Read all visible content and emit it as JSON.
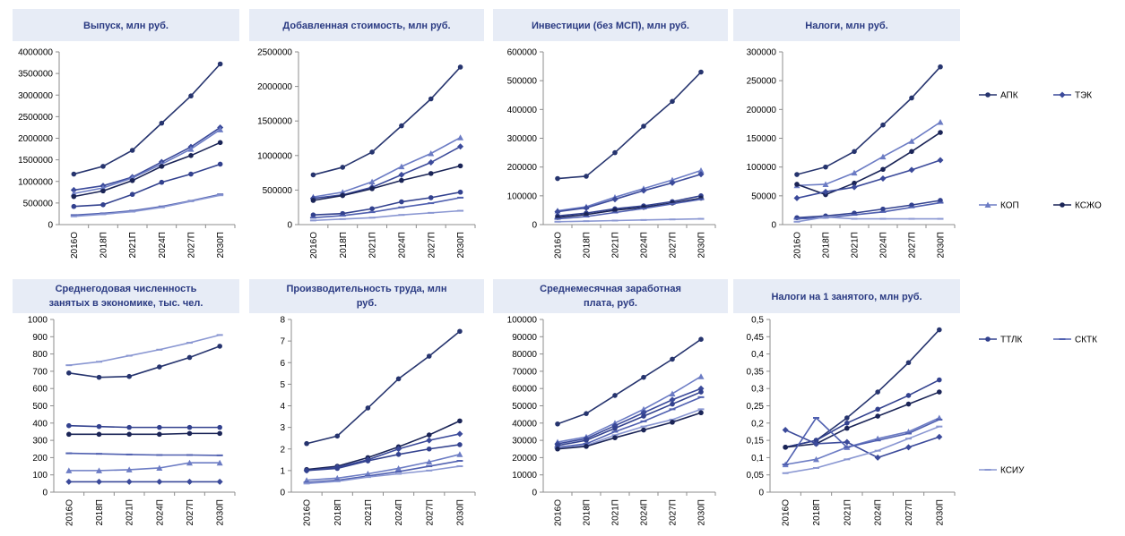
{
  "x_categories": [
    "2016О",
    "2018П",
    "2021П",
    "2024П",
    "2027П",
    "2030П"
  ],
  "series_styles": [
    {
      "key": "apk",
      "name": "АПК",
      "color": "#26346e",
      "marker": "circle"
    },
    {
      "key": "tek",
      "name": "ТЭК",
      "color": "#3b4a9a",
      "marker": "diamond"
    },
    {
      "key": "kop",
      "name": "КОП",
      "color": "#6c7cc4",
      "marker": "triangle"
    },
    {
      "key": "ksjo",
      "name": "КСЖО",
      "color": "#1a2456",
      "marker": "circle"
    },
    {
      "key": "ttlk",
      "name": "ТТЛК",
      "color": "#32418e",
      "marker": "circle"
    },
    {
      "key": "sktk",
      "name": "СКТК",
      "color": "#5060b0",
      "marker": "dash"
    },
    {
      "key": "ksiu",
      "name": "КСИУ",
      "color": "#8a97d2",
      "marker": "dash"
    }
  ],
  "legend": [
    {
      "text": "АПК",
      "series": "apk"
    },
    {
      "text": "ТЭК",
      "series": "tek"
    },
    {
      "text": "КОП",
      "series": "kop"
    },
    {
      "text": "КСЖО",
      "series": "ksjo"
    },
    {
      "text": "ТТЛК",
      "series": "ttlk"
    },
    {
      "text": "СКТК",
      "series": "sktk"
    },
    {
      "text": "КСИУ",
      "series": "ksiu"
    }
  ],
  "chart_data": [
    {
      "type": "line",
      "title_lines": [
        "Выпуск, млн руб."
      ],
      "ylim": [
        0,
        4000000
      ],
      "y_ticks": [
        "0",
        "500000",
        "1000000",
        "1500000",
        "2000000",
        "2500000",
        "3000000",
        "3500000",
        "4000000"
      ],
      "series": [
        {
          "style": "apk",
          "values": [
            1170000,
            1350000,
            1720000,
            2350000,
            2980000,
            3720000
          ]
        },
        {
          "style": "tek",
          "values": [
            800000,
            900000,
            1100000,
            1450000,
            1800000,
            2250000
          ]
        },
        {
          "style": "kop",
          "values": [
            720000,
            850000,
            1080000,
            1400000,
            1750000,
            2200000
          ]
        },
        {
          "style": "ksjo",
          "values": [
            650000,
            780000,
            1020000,
            1350000,
            1600000,
            1900000
          ]
        },
        {
          "style": "ttlk",
          "values": [
            420000,
            460000,
            700000,
            980000,
            1170000,
            1400000
          ]
        },
        {
          "style": "sktk",
          "values": [
            220000,
            260000,
            320000,
            420000,
            550000,
            700000
          ]
        },
        {
          "style": "ksiu",
          "values": [
            190000,
            240000,
            300000,
            400000,
            540000,
            680000
          ]
        }
      ]
    },
    {
      "type": "line",
      "title_lines": [
        "Добавленная стоимость, млн руб."
      ],
      "ylim": [
        0,
        2500000
      ],
      "y_ticks": [
        "0",
        "500000",
        "1000000",
        "1500000",
        "2000000",
        "2500000"
      ],
      "series": [
        {
          "style": "apk",
          "values": [
            720000,
            830000,
            1050000,
            1430000,
            1820000,
            2280000
          ]
        },
        {
          "style": "kop",
          "values": [
            400000,
            470000,
            620000,
            840000,
            1030000,
            1260000
          ]
        },
        {
          "style": "tek",
          "values": [
            380000,
            430000,
            540000,
            720000,
            900000,
            1130000
          ]
        },
        {
          "style": "ksjo",
          "values": [
            350000,
            420000,
            520000,
            640000,
            740000,
            850000
          ]
        },
        {
          "style": "ttlk",
          "values": [
            140000,
            160000,
            230000,
            330000,
            390000,
            470000
          ]
        },
        {
          "style": "sktk",
          "values": [
            100000,
            130000,
            180000,
            250000,
            310000,
            390000
          ]
        },
        {
          "style": "ksiu",
          "values": [
            60000,
            80000,
            100000,
            140000,
            170000,
            200000
          ]
        }
      ]
    },
    {
      "type": "line",
      "title_lines": [
        "Инвестиции (без МСП), млн руб."
      ],
      "ylim": [
        0,
        600000
      ],
      "y_ticks": [
        "0",
        "100000",
        "200000",
        "300000",
        "400000",
        "500000",
        "600000"
      ],
      "series": [
        {
          "style": "apk",
          "values": [
            160000,
            168000,
            250000,
            342000,
            428000,
            530000
          ]
        },
        {
          "style": "kop",
          "values": [
            48000,
            62000,
            95000,
            125000,
            155000,
            188000
          ]
        },
        {
          "style": "tek",
          "values": [
            45000,
            58000,
            88000,
            118000,
            145000,
            175000
          ]
        },
        {
          "style": "ttlk",
          "values": [
            30000,
            40000,
            55000,
            65000,
            80000,
            100000
          ]
        },
        {
          "style": "ksjo",
          "values": [
            25000,
            35000,
            50000,
            60000,
            75000,
            92000
          ]
        },
        {
          "style": "sktk",
          "values": [
            20000,
            28000,
            42000,
            56000,
            72000,
            88000
          ]
        },
        {
          "style": "ksiu",
          "values": [
            10000,
            12000,
            14000,
            16000,
            18000,
            20000
          ]
        }
      ]
    },
    {
      "type": "line",
      "title_lines": [
        "Налоги, млн руб."
      ],
      "ylim": [
        0,
        300000
      ],
      "y_ticks": [
        "0",
        "50000",
        "100000",
        "150000",
        "200000",
        "250000",
        "300000"
      ],
      "series": [
        {
          "style": "apk",
          "values": [
            87000,
            100000,
            127000,
            173000,
            220000,
            274000
          ]
        },
        {
          "style": "kop",
          "values": [
            68000,
            70000,
            90000,
            118000,
            145000,
            178000
          ]
        },
        {
          "style": "ksjo",
          "values": [
            70000,
            52000,
            72000,
            96000,
            127000,
            160000
          ]
        },
        {
          "style": "tek",
          "values": [
            46000,
            57000,
            65000,
            80000,
            95000,
            112000
          ]
        },
        {
          "style": "ttlk",
          "values": [
            12000,
            15000,
            20000,
            27000,
            34000,
            42000
          ]
        },
        {
          "style": "sktk",
          "values": [
            10000,
            12000,
            17000,
            22000,
            30000,
            38000
          ]
        },
        {
          "style": "ksiu",
          "values": [
            5000,
            13000,
            10000,
            10000,
            10000,
            10000
          ]
        }
      ]
    },
    {
      "type": "line",
      "title_lines": [
        "Среднегодовая численность",
        "занятых в экономике, тыс. чел."
      ],
      "ylim": [
        0,
        1000
      ],
      "y_ticks": [
        "0",
        "100",
        "200",
        "300",
        "400",
        "500",
        "600",
        "700",
        "800",
        "900",
        "1000"
      ],
      "series": [
        {
          "style": "ksiu",
          "values": [
            735,
            755,
            790,
            825,
            865,
            910
          ]
        },
        {
          "style": "apk",
          "values": [
            690,
            665,
            670,
            725,
            780,
            845
          ]
        },
        {
          "style": "ttlk",
          "values": [
            385,
            380,
            375,
            375,
            375,
            375
          ]
        },
        {
          "style": "ksjo",
          "values": [
            335,
            335,
            335,
            335,
            340,
            340
          ]
        },
        {
          "style": "sktk",
          "values": [
            225,
            222,
            218,
            215,
            215,
            213
          ]
        },
        {
          "style": "kop",
          "values": [
            125,
            125,
            130,
            140,
            170,
            170
          ]
        },
        {
          "style": "tek",
          "values": [
            60,
            60,
            60,
            60,
            60,
            60
          ]
        }
      ]
    },
    {
      "type": "line",
      "title_lines": [
        "Производительность труда, млн",
        "руб."
      ],
      "ylim": [
        0,
        8
      ],
      "y_ticks": [
        "0",
        "1",
        "2",
        "3",
        "4",
        "5",
        "6",
        "7",
        "8"
      ],
      "series": [
        {
          "style": "apk",
          "values": [
            2.25,
            2.6,
            3.9,
            5.25,
            6.3,
            7.45
          ]
        },
        {
          "style": "ksjo",
          "values": [
            1.05,
            1.2,
            1.6,
            2.1,
            2.65,
            3.3
          ]
        },
        {
          "style": "tek",
          "values": [
            1.0,
            1.15,
            1.5,
            2.0,
            2.4,
            2.7
          ]
        },
        {
          "style": "ttlk",
          "values": [
            1.0,
            1.1,
            1.45,
            1.75,
            2.0,
            2.2
          ]
        },
        {
          "style": "kop",
          "values": [
            0.55,
            0.65,
            0.85,
            1.1,
            1.4,
            1.75
          ]
        },
        {
          "style": "sktk",
          "values": [
            0.45,
            0.55,
            0.75,
            0.95,
            1.2,
            1.45
          ]
        },
        {
          "style": "ksiu",
          "values": [
            0.4,
            0.5,
            0.7,
            0.85,
            1.0,
            1.2
          ]
        }
      ]
    },
    {
      "type": "line",
      "title_lines": [
        "Среднемесячная заработная",
        "плата, руб."
      ],
      "ylim": [
        0,
        100000
      ],
      "y_ticks": [
        "0",
        "10000",
        "20000",
        "30000",
        "40000",
        "50000",
        "60000",
        "70000",
        "80000",
        "90000",
        "100000"
      ],
      "series": [
        {
          "style": "apk",
          "values": [
            39500,
            45500,
            56000,
            66500,
            77000,
            88500
          ]
        },
        {
          "style": "kop",
          "values": [
            29000,
            32000,
            40000,
            48000,
            57000,
            67000
          ]
        },
        {
          "style": "tek",
          "values": [
            28000,
            31000,
            38500,
            46000,
            53500,
            60000
          ]
        },
        {
          "style": "ttlk",
          "values": [
            27000,
            30000,
            37000,
            44000,
            51000,
            58000
          ]
        },
        {
          "style": "sktk",
          "values": [
            26000,
            28000,
            35000,
            41000,
            48000,
            55000
          ]
        },
        {
          "style": "ksiu",
          "values": [
            25500,
            27000,
            33000,
            38000,
            42000,
            48000
          ]
        },
        {
          "style": "ksjo",
          "values": [
            25000,
            26500,
            31500,
            36000,
            40500,
            46000
          ]
        }
      ]
    },
    {
      "type": "line",
      "title_lines": [
        "Налоги на 1 занятого, млн руб."
      ],
      "ylim": [
        0,
        0.5
      ],
      "y_ticks": [
        "0",
        "0,05",
        "0,1",
        "0,15",
        "0,2",
        "0,25",
        "0,3",
        "0,35",
        "0,4",
        "0,45",
        "0,5"
      ],
      "series": [
        {
          "style": "apk",
          "values": [
            0.13,
            0.15,
            0.215,
            0.29,
            0.375,
            0.47
          ]
        },
        {
          "style": "ttlk",
          "values": [
            0.13,
            0.15,
            0.2,
            0.24,
            0.28,
            0.325
          ]
        },
        {
          "style": "ksjo",
          "values": [
            0.13,
            0.14,
            0.185,
            0.22,
            0.255,
            0.29
          ]
        },
        {
          "style": "tek",
          "values": [
            0.18,
            0.14,
            0.145,
            0.1,
            0.13,
            0.16
          ]
        },
        {
          "style": "kop",
          "values": [
            0.08,
            0.095,
            0.13,
            0.155,
            0.175,
            0.215
          ]
        },
        {
          "style": "sktk",
          "values": [
            0.08,
            0.215,
            0.13,
            0.15,
            0.17,
            0.21
          ]
        },
        {
          "style": "ksiu",
          "values": [
            0.055,
            0.07,
            0.095,
            0.12,
            0.155,
            0.19
          ]
        }
      ]
    }
  ]
}
